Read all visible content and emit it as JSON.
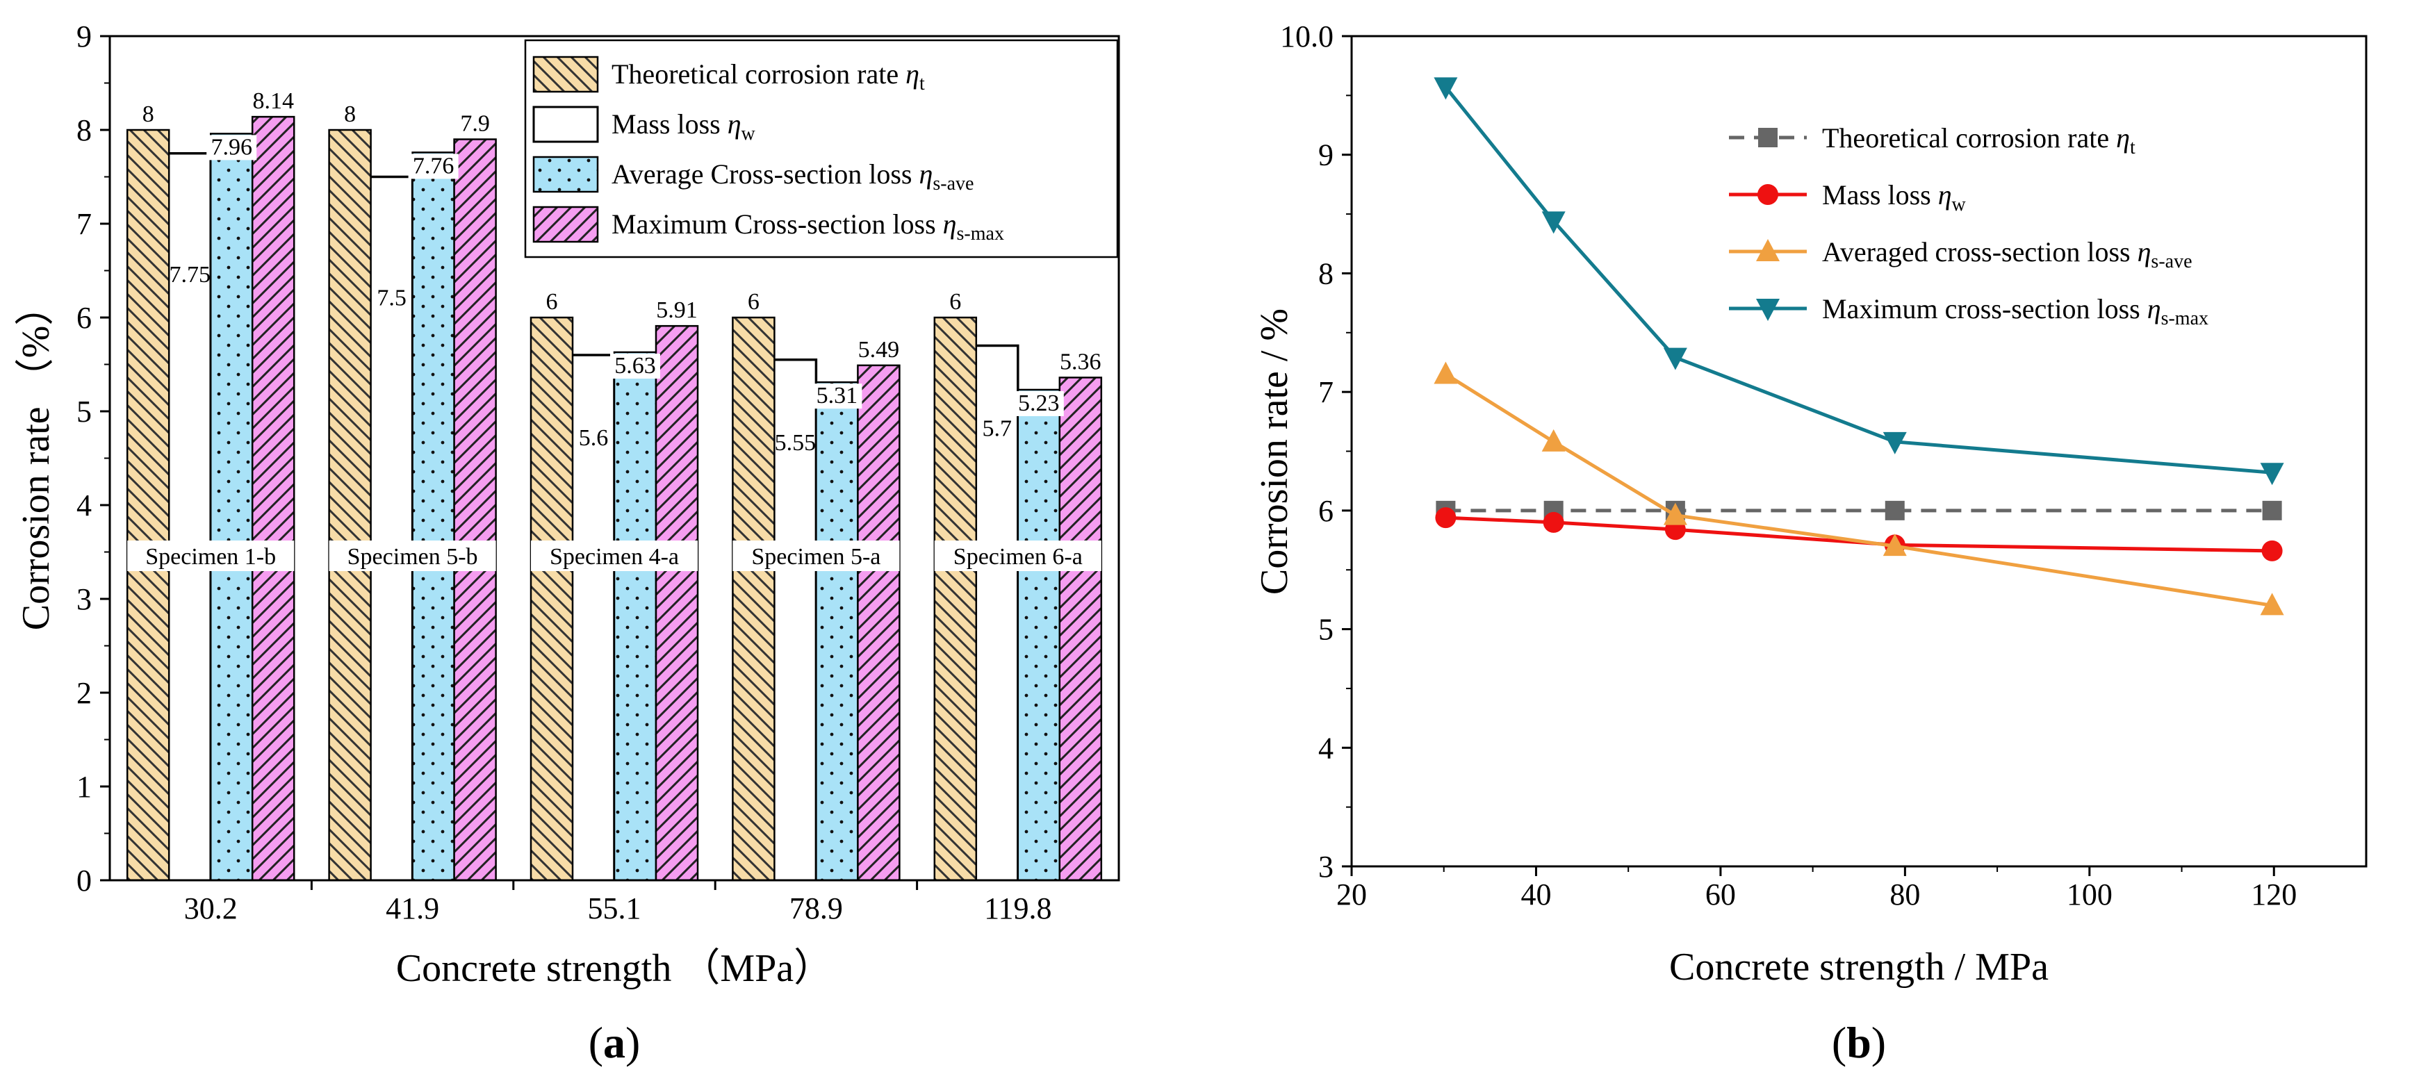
{
  "chart_data": [
    {
      "type": "bar",
      "panel": "(a)",
      "panel_letter": "a",
      "xlabel": "Concrete strength （MPa）",
      "ylabel": "Corrosion rate （%）",
      "ylim": [
        0,
        9
      ],
      "yticks": [
        "0",
        "1",
        "2",
        "3",
        "4",
        "5",
        "6",
        "7",
        "8",
        "9"
      ],
      "categories": [
        "30.2",
        "41.9",
        "55.1",
        "78.9",
        "119.8"
      ],
      "specimens": [
        "Specimen 1-b",
        "Specimen 5-b",
        "Specimen 4-a",
        "Specimen 5-a",
        "Specimen 6-a"
      ],
      "series": [
        {
          "name": "Theoretical corrosion rate ηt",
          "legend_main": "Theoretical corrosion rate ",
          "legend_sym": "η",
          "legend_sub": "t",
          "color": "#f7dca8",
          "pattern": "hatch-right",
          "values": [
            8,
            8,
            6,
            6,
            6
          ],
          "labels": [
            "8",
            "8",
            "6",
            "6",
            "6"
          ]
        },
        {
          "name": "Mass loss ηw",
          "legend_main": "Mass loss ",
          "legend_sym": "η",
          "legend_sub": "w",
          "color": "#ffffff",
          "pattern": "none",
          "values": [
            7.75,
            7.5,
            5.6,
            5.55,
            5.7
          ],
          "labels": [
            "7.75",
            "7.5",
            "5.6",
            "5.55",
            "5.7"
          ]
        },
        {
          "name": "Average Cross-section loss ηs-ave",
          "legend_main": "Average Cross-section loss ",
          "legend_sym": "η",
          "legend_sub": "s-ave",
          "color": "#a9e2f7",
          "pattern": "dots",
          "values": [
            7.96,
            7.76,
            5.63,
            5.31,
            5.23
          ],
          "labels": [
            "7.96",
            "7.76",
            "5.63",
            "5.31",
            "5.23"
          ]
        },
        {
          "name": "Maximum Cross-section loss ηs-max",
          "legend_main": "Maximum Cross-section loss ",
          "legend_sym": "η",
          "legend_sub": "s-max",
          "color": "#f59df0",
          "pattern": "hatch-left",
          "values": [
            8.14,
            7.9,
            5.91,
            5.49,
            5.36
          ],
          "labels": [
            "8.14",
            "7.9",
            "5.91",
            "5.49",
            "5.36"
          ]
        }
      ]
    },
    {
      "type": "line",
      "panel": "(b)",
      "panel_letter": "b",
      "xlabel": "Concrete strength / MPa",
      "ylabel": "Corrosion rate / %",
      "xlim": [
        20,
        130
      ],
      "ylim": [
        3,
        10
      ],
      "xticks": [
        "20",
        "40",
        "60",
        "80",
        "100",
        "120"
      ],
      "yticks": [
        "3",
        "4",
        "5",
        "6",
        "7",
        "8",
        "9",
        "10.0"
      ],
      "x": [
        30.2,
        41.9,
        55.1,
        78.9,
        119.8
      ],
      "series": [
        {
          "name": "Theoretical corrosion rate ηt",
          "legend_main": "Theoretical corrosion rate ",
          "legend_sym": "η",
          "legend_sub": "t",
          "color": "#666666",
          "dash": true,
          "marker": "square",
          "values": [
            6,
            6,
            6,
            6,
            6
          ]
        },
        {
          "name": "Mass loss ηw",
          "legend_main": "Mass loss ",
          "legend_sym": "η",
          "legend_sub": "w",
          "color": "#ee1111",
          "dash": false,
          "marker": "circle",
          "values": [
            5.94,
            5.9,
            5.84,
            5.71,
            5.66
          ]
        },
        {
          "name": "Averaged cross-section loss ηs-ave",
          "legend_main": "Averaged cross-section loss  ",
          "legend_sym": "η",
          "legend_sub": "s-ave",
          "color": "#f0a040",
          "dash": false,
          "marker": "triangle-up",
          "values": [
            7.15,
            6.58,
            5.96,
            5.7,
            5.2
          ]
        },
        {
          "name": "Maximum cross-section loss ηs-max",
          "legend_main": "Maximum cross-section loss  ",
          "legend_sym": "η",
          "legend_sub": "s-max",
          "color": "#137b8e",
          "dash": false,
          "marker": "triangle-down",
          "values": [
            9.57,
            8.44,
            7.29,
            6.58,
            6.32
          ]
        }
      ]
    }
  ]
}
